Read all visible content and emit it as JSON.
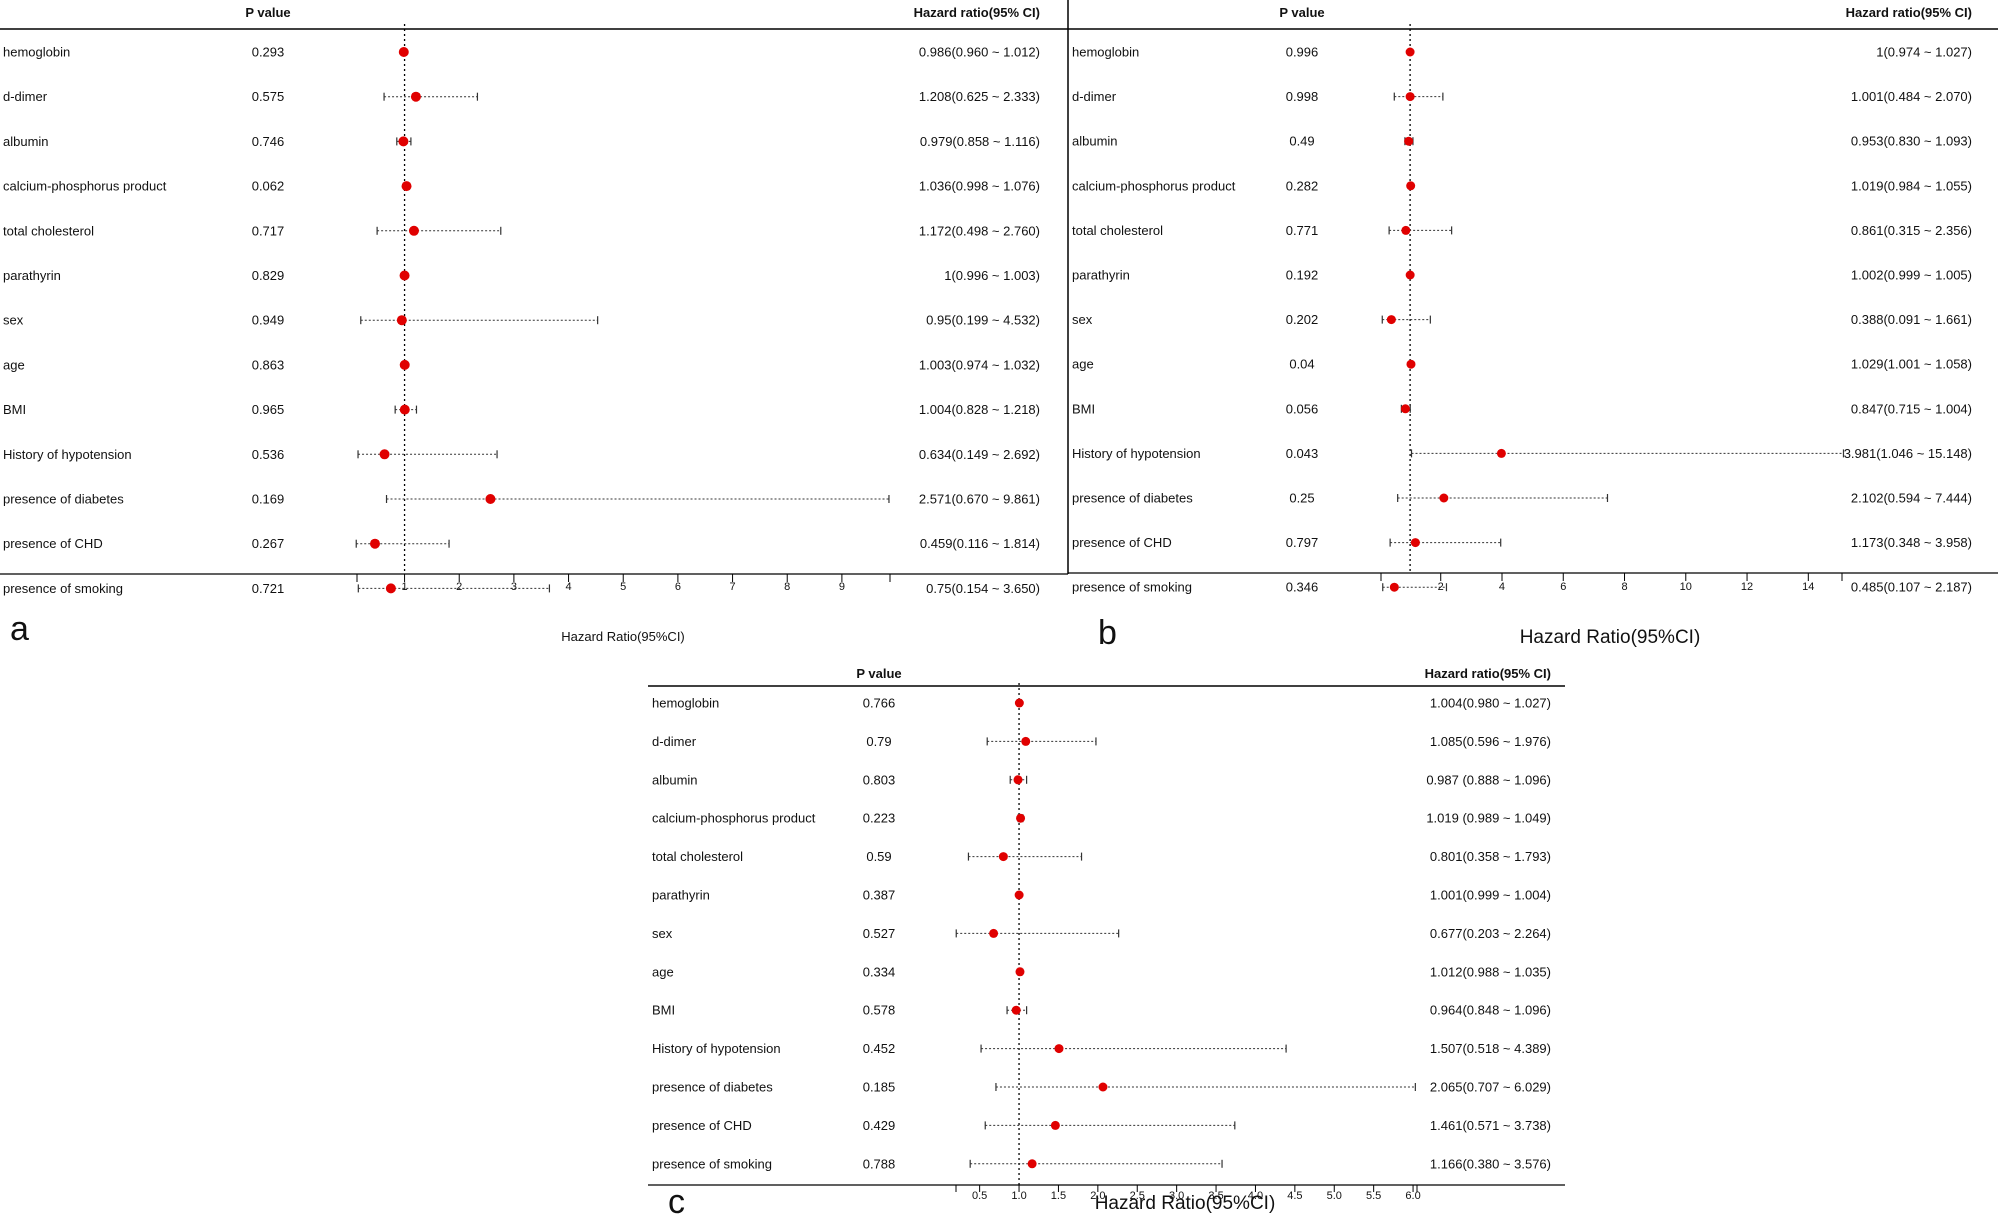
{
  "chart_data": [
    {
      "type": "forest",
      "panel_label": "a",
      "header_pvalue": "P value",
      "header_hr": "Hazard ratio(95% CI)",
      "xlabel": "Hazard Ratio(95%CI)",
      "xticks": [
        "1",
        "2",
        "3",
        "4",
        "5",
        "6",
        "7",
        "8",
        "9"
      ],
      "xlim": [
        0.13,
        9.88
      ],
      "reference_line": 1,
      "rows": [
        {
          "label": "hemoglobin",
          "p": "0.293",
          "hr_text": "0.986(0.960 ~ 1.012)",
          "hr": 0.986,
          "lower": 0.96,
          "upper": 1.012
        },
        {
          "label": "d-dimer",
          "p": "0.575",
          "hr_text": "1.208(0.625 ~ 2.333)",
          "hr": 1.208,
          "lower": 0.625,
          "upper": 2.333
        },
        {
          "label": "albumin",
          "p": "0.746",
          "hr_text": "0.979(0.858 ~ 1.116)",
          "hr": 0.979,
          "lower": 0.858,
          "upper": 1.116
        },
        {
          "label": "calcium-phosphorus product",
          "p": "0.062",
          "hr_text": "1.036(0.998 ~ 1.076)",
          "hr": 1.036,
          "lower": 0.998,
          "upper": 1.076
        },
        {
          "label": "total cholesterol",
          "p": "0.717",
          "hr_text": "1.172(0.498 ~ 2.760)",
          "hr": 1.172,
          "lower": 0.498,
          "upper": 2.76
        },
        {
          "label": "parathyrin",
          "p": "0.829",
          "hr_text": "1(0.996 ~ 1.003)",
          "hr": 1,
          "lower": 0.996,
          "upper": 1.003
        },
        {
          "label": "sex",
          "p": "0.949",
          "hr_text": "0.95(0.199 ~ 4.532)",
          "hr": 0.95,
          "lower": 0.199,
          "upper": 4.532
        },
        {
          "label": "age",
          "p": "0.863",
          "hr_text": "1.003(0.974 ~ 1.032)",
          "hr": 1.003,
          "lower": 0.974,
          "upper": 1.032
        },
        {
          "label": "BMI",
          "p": "0.965",
          "hr_text": "1.004(0.828 ~ 1.218)",
          "hr": 1.004,
          "lower": 0.828,
          "upper": 1.218
        },
        {
          "label": "History of hypotension",
          "p": "0.536",
          "hr_text": "0.634(0.149 ~ 2.692)",
          "hr": 0.634,
          "lower": 0.149,
          "upper": 2.692
        },
        {
          "label": "presence of diabetes",
          "p": "0.169",
          "hr_text": "2.571(0.670 ~ 9.861)",
          "hr": 2.571,
          "lower": 0.67,
          "upper": 9.861
        },
        {
          "label": "presence of CHD",
          "p": "0.267",
          "hr_text": "0.459(0.116 ~ 1.814)",
          "hr": 0.459,
          "lower": 0.116,
          "upper": 1.814
        },
        {
          "label": "presence of smoking",
          "p": "0.721",
          "hr_text": "0.75(0.154 ~ 3.650)",
          "hr": 0.75,
          "lower": 0.154,
          "upper": 3.65
        }
      ]
    },
    {
      "type": "forest",
      "panel_label": "b",
      "header_pvalue": "P value",
      "header_hr": "Hazard ratio(95% CI)",
      "xlabel": "Hazard Ratio(95%CI)",
      "xticks": [
        "2",
        "4",
        "6",
        "8",
        "10",
        "12",
        "14"
      ],
      "xlim": [
        0.05,
        15.1
      ],
      "reference_line": 1,
      "rows": [
        {
          "label": "hemoglobin",
          "p": "0.996",
          "hr_text": "1(0.974 ~ 1.027)",
          "hr": 1,
          "lower": 0.974,
          "upper": 1.027
        },
        {
          "label": "d-dimer",
          "p": "0.998",
          "hr_text": "1.001(0.484 ~ 2.070)",
          "hr": 1.001,
          "lower": 0.484,
          "upper": 2.07
        },
        {
          "label": "albumin",
          "p": "0.49",
          "hr_text": "0.953(0.830 ~ 1.093)",
          "hr": 0.953,
          "lower": 0.83,
          "upper": 1.093
        },
        {
          "label": "calcium-phosphorus product",
          "p": "0.282",
          "hr_text": "1.019(0.984 ~ 1.055)",
          "hr": 1.019,
          "lower": 0.984,
          "upper": 1.055
        },
        {
          "label": "total cholesterol",
          "p": "0.771",
          "hr_text": "0.861(0.315 ~ 2.356)",
          "hr": 0.861,
          "lower": 0.315,
          "upper": 2.356
        },
        {
          "label": "parathyrin",
          "p": "0.192",
          "hr_text": "1.002(0.999 ~ 1.005)",
          "hr": 1.002,
          "lower": 0.999,
          "upper": 1.005
        },
        {
          "label": "sex",
          "p": "0.202",
          "hr_text": "0.388(0.091 ~ 1.661)",
          "hr": 0.388,
          "lower": 0.091,
          "upper": 1.661
        },
        {
          "label": "age",
          "p": "0.04",
          "hr_text": "1.029(1.001 ~ 1.058)",
          "hr": 1.029,
          "lower": 1.001,
          "upper": 1.058
        },
        {
          "label": "BMI",
          "p": "0.056",
          "hr_text": "0.847(0.715 ~ 1.004)",
          "hr": 0.847,
          "lower": 0.715,
          "upper": 1.004
        },
        {
          "label": "History of hypotension",
          "p": "0.043",
          "hr_text": "3.981(1.046 ~ 15.148)",
          "hr": 3.981,
          "lower": 1.046,
          "upper": 15.148
        },
        {
          "label": "presence of diabetes",
          "p": "0.25",
          "hr_text": "2.102(0.594 ~ 7.444)",
          "hr": 2.102,
          "lower": 0.594,
          "upper": 7.444
        },
        {
          "label": "presence of CHD",
          "p": "0.797",
          "hr_text": "1.173(0.348 ~ 3.958)",
          "hr": 1.173,
          "lower": 0.348,
          "upper": 3.958
        },
        {
          "label": "presence of smoking",
          "p": "0.346",
          "hr_text": "0.485(0.107 ~ 2.187)",
          "hr": 0.485,
          "lower": 0.107,
          "upper": 2.187
        }
      ]
    },
    {
      "type": "forest",
      "panel_label": "c",
      "header_pvalue": "P value",
      "header_hr": "Hazard ratio(95% CI)",
      "xlabel": "Hazard Ratio(95%CI)",
      "xticks": [
        "0.5",
        "1.0",
        "1.5",
        "2.0",
        "2.5",
        "3.0",
        "3.5",
        "4.0",
        "4.5",
        "5.0",
        "5.5",
        "6.0"
      ],
      "xlim": [
        0.2,
        6.05
      ],
      "reference_line": 1,
      "rows": [
        {
          "label": "hemoglobin",
          "p": "0.766",
          "hr_text": "1.004(0.980 ~ 1.027)",
          "hr": 1.004,
          "lower": 0.98,
          "upper": 1.027
        },
        {
          "label": "d-dimer",
          "p": "0.79",
          "hr_text": "1.085(0.596 ~ 1.976)",
          "hr": 1.085,
          "lower": 0.596,
          "upper": 1.976
        },
        {
          "label": "albumin",
          "p": "0.803",
          "hr_text": "0.987 (0.888 ~ 1.096)",
          "hr": 0.987,
          "lower": 0.888,
          "upper": 1.096
        },
        {
          "label": "calcium-phosphorus product",
          "p": "0.223",
          "hr_text": "1.019 (0.989 ~ 1.049)",
          "hr": 1.019,
          "lower": 0.989,
          "upper": 1.049
        },
        {
          "label": "total cholesterol",
          "p": "0.59",
          "hr_text": "0.801(0.358 ~ 1.793)",
          "hr": 0.801,
          "lower": 0.358,
          "upper": 1.793
        },
        {
          "label": "parathyrin",
          "p": "0.387",
          "hr_text": "1.001(0.999 ~ 1.004)",
          "hr": 1.001,
          "lower": 0.999,
          "upper": 1.004
        },
        {
          "label": "sex",
          "p": "0.527",
          "hr_text": "0.677(0.203 ~ 2.264)",
          "hr": 0.677,
          "lower": 0.203,
          "upper": 2.264
        },
        {
          "label": "age",
          "p": "0.334",
          "hr_text": "1.012(0.988 ~ 1.035)",
          "hr": 1.012,
          "lower": 0.988,
          "upper": 1.035
        },
        {
          "label": "BMI",
          "p": "0.578",
          "hr_text": "0.964(0.848 ~ 1.096)",
          "hr": 0.964,
          "lower": 0.848,
          "upper": 1.096
        },
        {
          "label": "History of hypotension",
          "p": "0.452",
          "hr_text": "1.507(0.518 ~ 4.389)",
          "hr": 1.507,
          "lower": 0.518,
          "upper": 4.389
        },
        {
          "label": "presence of diabetes",
          "p": "0.185",
          "hr_text": "2.065(0.707 ~ 6.029)",
          "hr": 2.065,
          "lower": 0.707,
          "upper": 6.029
        },
        {
          "label": "presence of CHD",
          "p": "0.429",
          "hr_text": "1.461(0.571 ~ 3.738)",
          "hr": 1.461,
          "lower": 0.571,
          "upper": 3.738
        },
        {
          "label": "presence of smoking",
          "p": "0.788",
          "hr_text": "1.166(0.380 ~ 3.576)",
          "hr": 1.166,
          "lower": 0.38,
          "upper": 3.576
        }
      ]
    }
  ]
}
